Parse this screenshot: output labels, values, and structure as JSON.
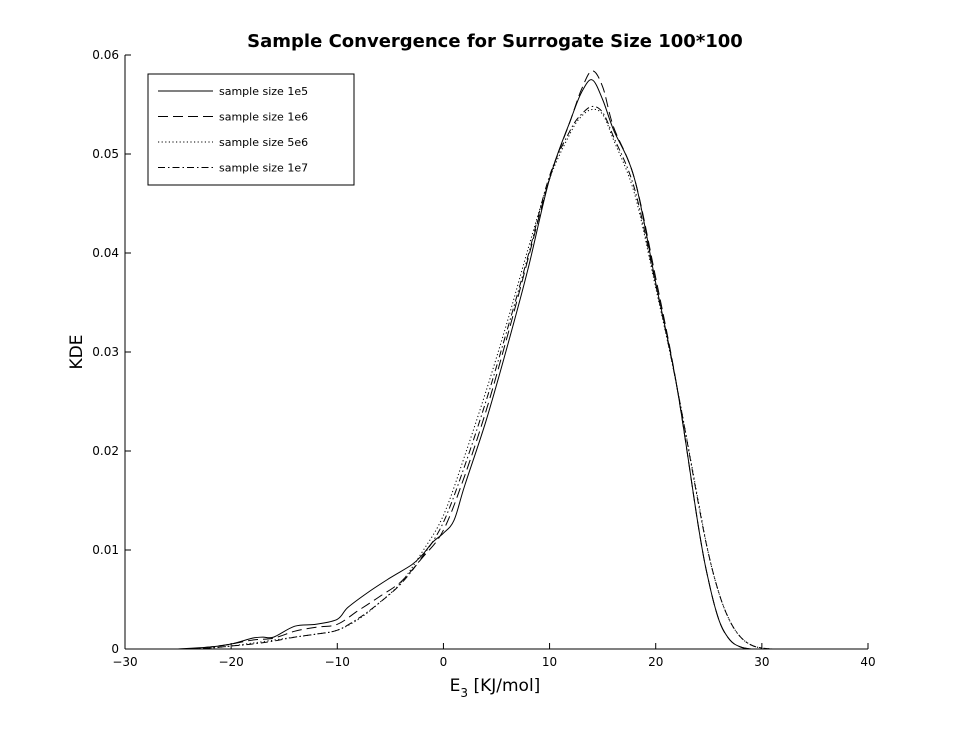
{
  "chart_data": {
    "type": "line",
    "title": "Sample Convergence for Surrogate Size 100*100",
    "xlabel_base": "E",
    "xlabel_sub": "3",
    "xlabel_rest": " [KJ/mol]",
    "ylabel": "KDE",
    "xlim": [
      -30,
      40
    ],
    "ylim": [
      0,
      0.06
    ],
    "xticks": [
      -30,
      -20,
      -10,
      0,
      10,
      20,
      30,
      40
    ],
    "xtick_labels": [
      "−30",
      "−20",
      "−10",
      "0",
      "10",
      "20",
      "30",
      "40"
    ],
    "yticks": [
      0,
      0.01,
      0.02,
      0.03,
      0.04,
      0.05,
      0.06
    ],
    "ytick_labels": [
      "0",
      "0.01",
      "0.02",
      "0.03",
      "0.04",
      "0.05",
      "0.06"
    ],
    "grid": false,
    "legend_position": "top-left",
    "series": [
      {
        "name": "sample size 1e5",
        "dash": "solid",
        "points": [
          [
            -25,
            0
          ],
          [
            -22,
            0.0002
          ],
          [
            -20,
            0.0005
          ],
          [
            -18,
            0.0011
          ],
          [
            -17,
            0.0012
          ],
          [
            -16,
            0.0012
          ],
          [
            -14,
            0.0023
          ],
          [
            -12,
            0.0025
          ],
          [
            -10,
            0.003
          ],
          [
            -9,
            0.0042
          ],
          [
            -7,
            0.0058
          ],
          [
            -5,
            0.0072
          ],
          [
            -3,
            0.0085
          ],
          [
            -2,
            0.0095
          ],
          [
            -1,
            0.0108
          ],
          [
            0,
            0.0117
          ],
          [
            1,
            0.013
          ],
          [
            2,
            0.0165
          ],
          [
            4,
            0.023
          ],
          [
            6,
            0.0305
          ],
          [
            8,
            0.0385
          ],
          [
            10,
            0.0475
          ],
          [
            12,
            0.0535
          ],
          [
            13,
            0.0562
          ],
          [
            14,
            0.0575
          ],
          [
            15,
            0.0555
          ],
          [
            16,
            0.0525
          ],
          [
            18,
            0.0475
          ],
          [
            20,
            0.037
          ],
          [
            22,
            0.0265
          ],
          [
            24,
            0.0125
          ],
          [
            25,
            0.0068
          ],
          [
            26,
            0.0028
          ],
          [
            27,
            0.0009
          ],
          [
            28,
            0.0002
          ],
          [
            29,
            0
          ]
        ]
      },
      {
        "name": "sample size 1e6",
        "dash": "dashed",
        "points": [
          [
            -24,
            0
          ],
          [
            -22,
            0.0002
          ],
          [
            -20,
            0.0005
          ],
          [
            -18,
            0.0009
          ],
          [
            -16,
            0.0011
          ],
          [
            -14,
            0.0018
          ],
          [
            -12,
            0.0022
          ],
          [
            -10,
            0.0025
          ],
          [
            -8,
            0.0039
          ],
          [
            -6,
            0.0053
          ],
          [
            -4,
            0.0068
          ],
          [
            -2,
            0.0092
          ],
          [
            0,
            0.012
          ],
          [
            2,
            0.0175
          ],
          [
            4,
            0.024
          ],
          [
            6,
            0.0315
          ],
          [
            8,
            0.0395
          ],
          [
            10,
            0.0475
          ],
          [
            12,
            0.0535
          ],
          [
            13,
            0.0565
          ],
          [
            14,
            0.0584
          ],
          [
            15,
            0.0568
          ],
          [
            16,
            0.0528
          ],
          [
            18,
            0.0475
          ],
          [
            20,
            0.0375
          ],
          [
            22,
            0.0265
          ],
          [
            24,
            0.0125
          ],
          [
            25,
            0.0068
          ],
          [
            26,
            0.0028
          ],
          [
            27,
            0.0009
          ],
          [
            28,
            0.0002
          ],
          [
            29,
            0
          ]
        ]
      },
      {
        "name": "sample size 5e6",
        "dash": "dotted",
        "points": [
          [
            -24,
            0
          ],
          [
            -22,
            0.0001
          ],
          [
            -20,
            0.0003
          ],
          [
            -18,
            0.0006
          ],
          [
            -16,
            0.0009
          ],
          [
            -14,
            0.0012
          ],
          [
            -12,
            0.0015
          ],
          [
            -10,
            0.0019
          ],
          [
            -8,
            0.003
          ],
          [
            -6,
            0.0047
          ],
          [
            -4,
            0.0067
          ],
          [
            -2,
            0.0098
          ],
          [
            0,
            0.0135
          ],
          [
            2,
            0.0195
          ],
          [
            4,
            0.026
          ],
          [
            6,
            0.033
          ],
          [
            8,
            0.0405
          ],
          [
            10,
            0.0475
          ],
          [
            12,
            0.0522
          ],
          [
            13,
            0.0538
          ],
          [
            14,
            0.0545
          ],
          [
            15,
            0.054
          ],
          [
            16,
            0.0515
          ],
          [
            18,
            0.046
          ],
          [
            20,
            0.0365
          ],
          [
            22,
            0.0265
          ],
          [
            24,
            0.015
          ],
          [
            25,
            0.0095
          ],
          [
            26,
            0.0055
          ],
          [
            27,
            0.0028
          ],
          [
            28,
            0.0012
          ],
          [
            29,
            0.0004
          ],
          [
            30,
            0.0001
          ],
          [
            31,
            0
          ]
        ]
      },
      {
        "name": "sample size 1e7",
        "dash": "dashdot",
        "points": [
          [
            -24,
            0
          ],
          [
            -22,
            0.0001
          ],
          [
            -20,
            0.0003
          ],
          [
            -18,
            0.0005
          ],
          [
            -16,
            0.0008
          ],
          [
            -14,
            0.0012
          ],
          [
            -12,
            0.0015
          ],
          [
            -10,
            0.0019
          ],
          [
            -8,
            0.0031
          ],
          [
            -6,
            0.0047
          ],
          [
            -4,
            0.0066
          ],
          [
            -2,
            0.0093
          ],
          [
            0,
            0.0128
          ],
          [
            2,
            0.0185
          ],
          [
            4,
            0.025
          ],
          [
            6,
            0.0322
          ],
          [
            8,
            0.0398
          ],
          [
            10,
            0.0478
          ],
          [
            12,
            0.0525
          ],
          [
            13,
            0.054
          ],
          [
            14,
            0.0548
          ],
          [
            15,
            0.0542
          ],
          [
            16,
            0.0518
          ],
          [
            18,
            0.0465
          ],
          [
            20,
            0.0368
          ],
          [
            22,
            0.0265
          ],
          [
            24,
            0.0148
          ],
          [
            25,
            0.0095
          ],
          [
            26,
            0.0055
          ],
          [
            27,
            0.0028
          ],
          [
            28,
            0.0012
          ],
          [
            29,
            0.0004
          ],
          [
            30,
            0.0001
          ],
          [
            31,
            0
          ]
        ]
      }
    ]
  }
}
